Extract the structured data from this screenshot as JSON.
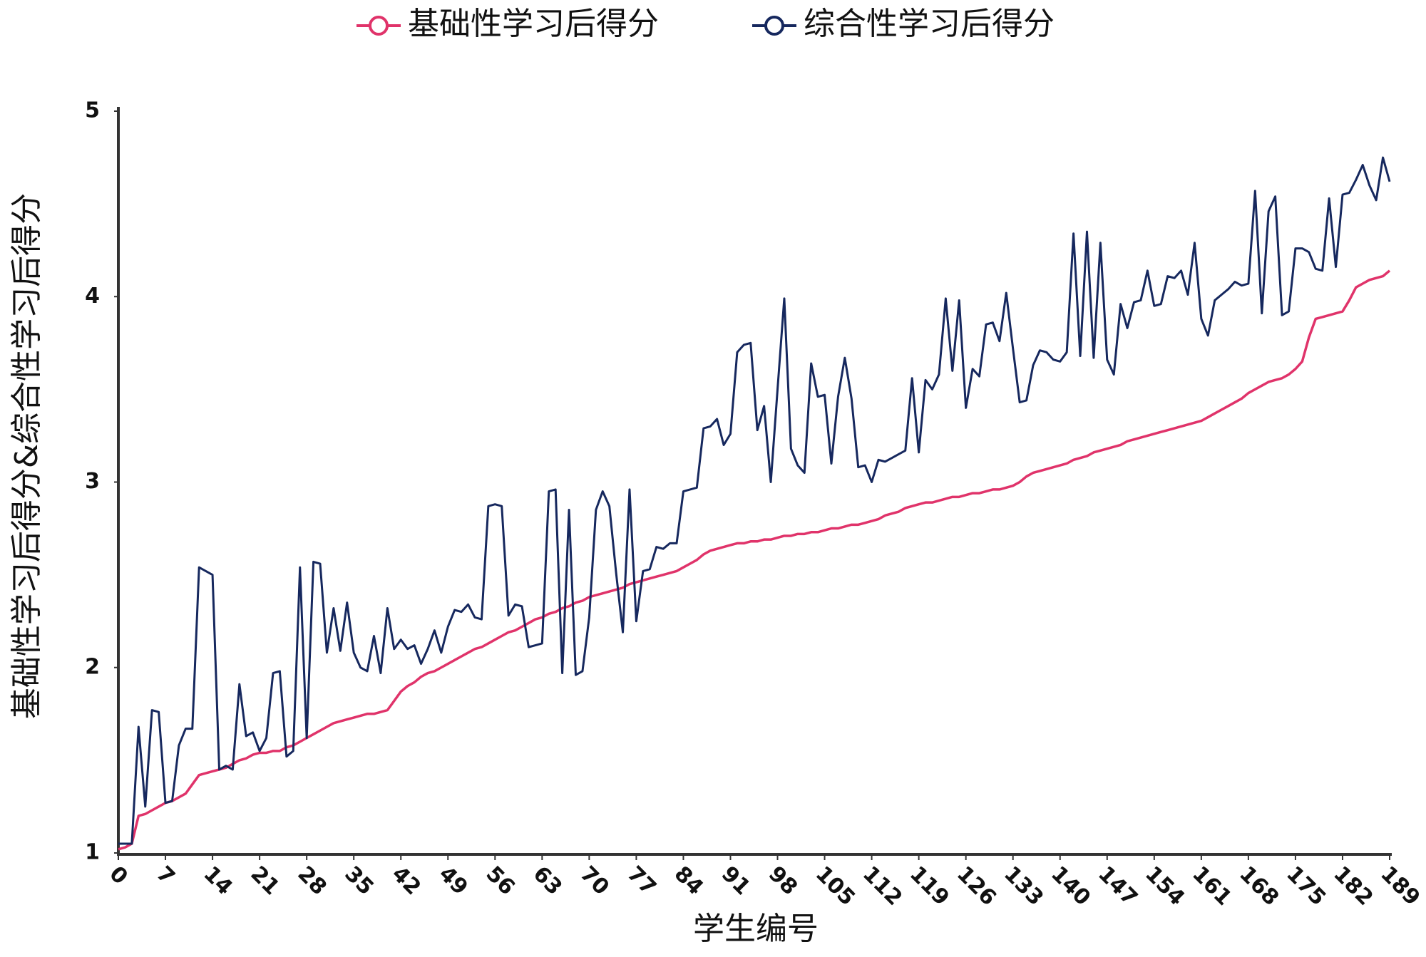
{
  "chart_data": {
    "type": "line",
    "x_label": "学生编号",
    "y_label": "基础性学习后得分&综合性学习后得分",
    "x": [
      0,
      1,
      2,
      3,
      4,
      5,
      6,
      7,
      8,
      9,
      10,
      11,
      12,
      13,
      14,
      15,
      16,
      17,
      18,
      19,
      20,
      21,
      22,
      23,
      24,
      25,
      26,
      27,
      28,
      29,
      30,
      31,
      32,
      33,
      34,
      35,
      36,
      37,
      38,
      39,
      40,
      41,
      42,
      43,
      44,
      45,
      46,
      47,
      48,
      49,
      50,
      51,
      52,
      53,
      54,
      55,
      56,
      57,
      58,
      59,
      60,
      61,
      62,
      63,
      64,
      65,
      66,
      67,
      68,
      69,
      70,
      71,
      72,
      73,
      74,
      75,
      76,
      77,
      78,
      79,
      80,
      81,
      82,
      83,
      84,
      85,
      86,
      87,
      88,
      89,
      90,
      91,
      92,
      93,
      94,
      95,
      96,
      97,
      98,
      99,
      100,
      101,
      102,
      103,
      104,
      105,
      106,
      107,
      108,
      109,
      110,
      111,
      112,
      113,
      114,
      115,
      116,
      117,
      118,
      119,
      120,
      121,
      122,
      123,
      124,
      125,
      126,
      127,
      128,
      129,
      130,
      131,
      132,
      133,
      134,
      135,
      136,
      137,
      138,
      139,
      140,
      141,
      142,
      143,
      144,
      145,
      146,
      147,
      148,
      149,
      150,
      151,
      152,
      153,
      154,
      155,
      156,
      157,
      158,
      159,
      160,
      161,
      162,
      163,
      164,
      165,
      166,
      167,
      168,
      169,
      170,
      171,
      172,
      173,
      174,
      175,
      176,
      177,
      178,
      179,
      180,
      181,
      182,
      183,
      184,
      185,
      186,
      187,
      188,
      189
    ],
    "series": [
      {
        "name": "基础性学习后得分",
        "color": "#e0336a",
        "values": [
          1.02,
          1.03,
          1.05,
          1.2,
          1.21,
          1.23,
          1.25,
          1.27,
          1.28,
          1.3,
          1.32,
          1.37,
          1.42,
          1.43,
          1.44,
          1.45,
          1.46,
          1.48,
          1.5,
          1.51,
          1.53,
          1.54,
          1.54,
          1.55,
          1.55,
          1.57,
          1.58,
          1.6,
          1.62,
          1.64,
          1.66,
          1.68,
          1.7,
          1.71,
          1.72,
          1.73,
          1.74,
          1.75,
          1.75,
          1.76,
          1.77,
          1.82,
          1.87,
          1.9,
          1.92,
          1.95,
          1.97,
          1.98,
          2.0,
          2.02,
          2.04,
          2.06,
          2.08,
          2.1,
          2.11,
          2.13,
          2.15,
          2.17,
          2.19,
          2.2,
          2.22,
          2.24,
          2.26,
          2.27,
          2.29,
          2.3,
          2.32,
          2.33,
          2.35,
          2.36,
          2.38,
          2.39,
          2.4,
          2.41,
          2.42,
          2.43,
          2.45,
          2.46,
          2.47,
          2.48,
          2.49,
          2.5,
          2.51,
          2.52,
          2.54,
          2.56,
          2.58,
          2.61,
          2.63,
          2.64,
          2.65,
          2.66,
          2.67,
          2.67,
          2.68,
          2.68,
          2.69,
          2.69,
          2.7,
          2.71,
          2.71,
          2.72,
          2.72,
          2.73,
          2.73,
          2.74,
          2.75,
          2.75,
          2.76,
          2.77,
          2.77,
          2.78,
          2.79,
          2.8,
          2.82,
          2.83,
          2.84,
          2.86,
          2.87,
          2.88,
          2.89,
          2.89,
          2.9,
          2.91,
          2.92,
          2.92,
          2.93,
          2.94,
          2.94,
          2.95,
          2.96,
          2.96,
          2.97,
          2.98,
          3.0,
          3.03,
          3.05,
          3.06,
          3.07,
          3.08,
          3.09,
          3.1,
          3.12,
          3.13,
          3.14,
          3.16,
          3.17,
          3.18,
          3.19,
          3.2,
          3.22,
          3.23,
          3.24,
          3.25,
          3.26,
          3.27,
          3.28,
          3.29,
          3.3,
          3.31,
          3.32,
          3.33,
          3.35,
          3.37,
          3.39,
          3.41,
          3.43,
          3.45,
          3.48,
          3.5,
          3.52,
          3.54,
          3.55,
          3.56,
          3.58,
          3.61,
          3.65,
          3.78,
          3.88,
          3.89,
          3.9,
          3.91,
          3.92,
          3.98,
          4.05,
          4.07,
          4.09,
          4.1,
          4.11,
          4.14
        ]
      },
      {
        "name": "综合性学习后得分",
        "color": "#16285e",
        "values": [
          1.05,
          1.05,
          1.05,
          1.68,
          1.25,
          1.77,
          1.76,
          1.27,
          1.28,
          1.58,
          1.67,
          1.67,
          2.54,
          2.52,
          2.5,
          1.45,
          1.47,
          1.45,
          1.91,
          1.63,
          1.65,
          1.55,
          1.62,
          1.97,
          1.98,
          1.52,
          1.55,
          2.54,
          1.62,
          2.57,
          2.56,
          2.08,
          2.32,
          2.09,
          2.35,
          2.08,
          2.0,
          1.98,
          2.17,
          1.97,
          2.32,
          2.1,
          2.15,
          2.1,
          2.12,
          2.02,
          2.1,
          2.2,
          2.08,
          2.22,
          2.31,
          2.3,
          2.34,
          2.27,
          2.26,
          2.87,
          2.88,
          2.87,
          2.28,
          2.34,
          2.33,
          2.11,
          2.12,
          2.13,
          2.95,
          2.96,
          1.97,
          2.85,
          1.96,
          1.98,
          2.27,
          2.85,
          2.95,
          2.87,
          2.51,
          2.19,
          2.96,
          2.25,
          2.52,
          2.53,
          2.65,
          2.64,
          2.67,
          2.67,
          2.95,
          2.96,
          2.97,
          3.29,
          3.3,
          3.34,
          3.2,
          3.26,
          3.7,
          3.74,
          3.75,
          3.28,
          3.41,
          3.0,
          3.5,
          3.99,
          3.18,
          3.09,
          3.05,
          3.64,
          3.46,
          3.47,
          3.1,
          3.46,
          3.67,
          3.45,
          3.08,
          3.09,
          3.0,
          3.12,
          3.11,
          3.13,
          3.15,
          3.17,
          3.56,
          3.16,
          3.55,
          3.5,
          3.58,
          3.99,
          3.6,
          3.98,
          3.4,
          3.61,
          3.57,
          3.85,
          3.86,
          3.76,
          4.02,
          3.72,
          3.43,
          3.44,
          3.63,
          3.71,
          3.7,
          3.66,
          3.65,
          3.7,
          4.34,
          3.68,
          4.35,
          3.67,
          4.29,
          3.66,
          3.58,
          3.96,
          3.83,
          3.97,
          3.98,
          4.14,
          3.95,
          3.96,
          4.11,
          4.1,
          4.14,
          4.01,
          4.29,
          3.88,
          3.79,
          3.98,
          4.01,
          4.04,
          4.08,
          4.06,
          4.07,
          4.57,
          3.91,
          4.46,
          4.54,
          3.9,
          3.92,
          4.26,
          4.26,
          4.24,
          4.15,
          4.14,
          4.53,
          4.16,
          4.55,
          4.56,
          4.63,
          4.71,
          4.6,
          4.52,
          4.75,
          4.62
        ]
      }
    ],
    "xlim": [
      0,
      189
    ],
    "xticks": [
      0,
      7,
      14,
      21,
      28,
      35,
      42,
      49,
      56,
      63,
      70,
      77,
      84,
      91,
      98,
      105,
      112,
      119,
      126,
      133,
      140,
      147,
      154,
      161,
      168,
      175,
      182,
      189
    ],
    "ylim": [
      1,
      5
    ],
    "yticks": [
      1,
      2,
      3,
      4,
      5
    ],
    "legend": "top"
  }
}
